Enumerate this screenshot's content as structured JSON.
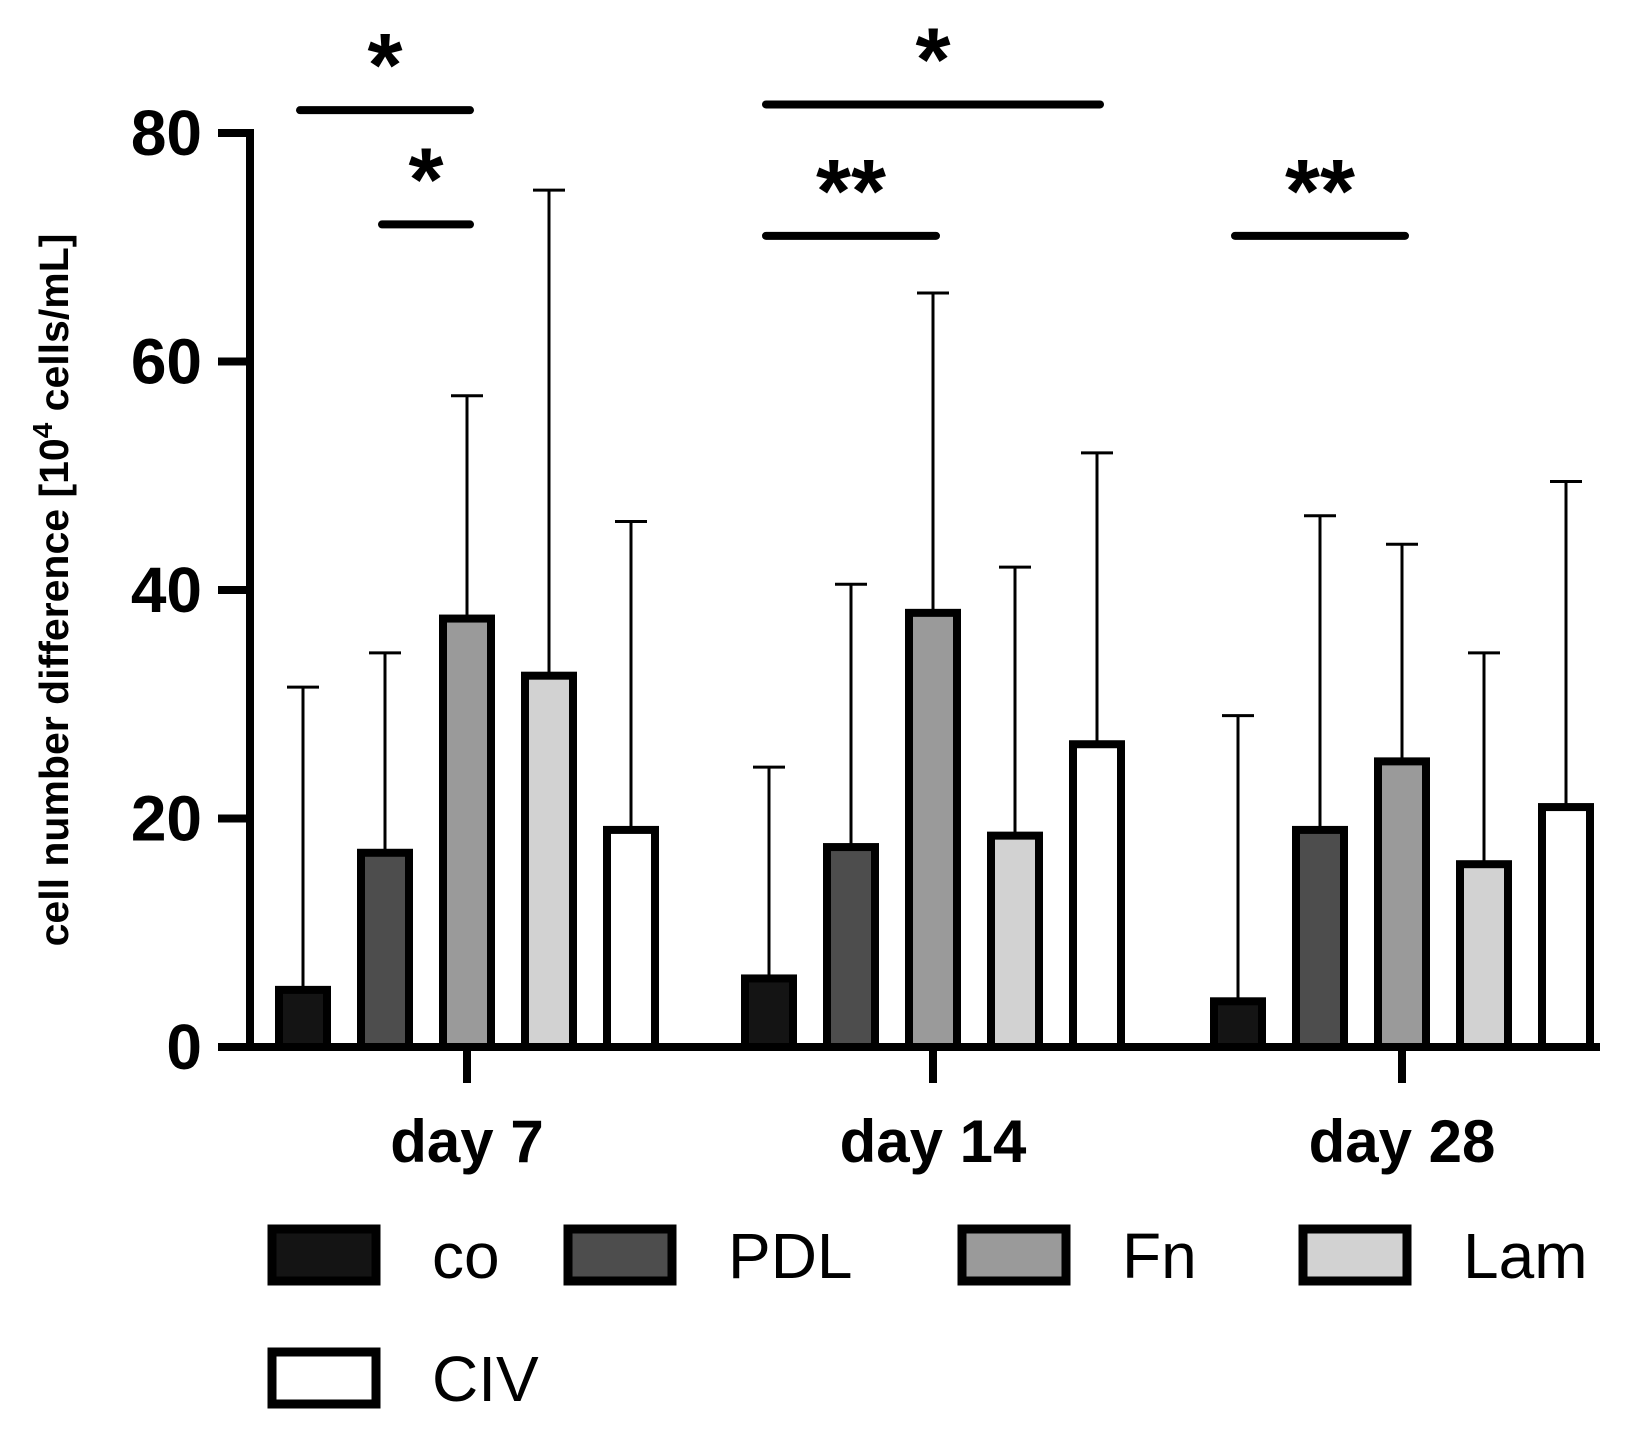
{
  "chart_data": {
    "type": "bar",
    "title": "",
    "xlabel": "",
    "ylabel": "cell number difference [10",
    "ylabel_sup": "4",
    "ylabel_suffix": " cells/mL]",
    "ylim": [
      0,
      80
    ],
    "yticks": [
      "0",
      "20",
      "40",
      "60",
      "80"
    ],
    "categories": [
      "day 7",
      "day 14",
      "day 28"
    ],
    "series": [
      {
        "name": "co",
        "color": "#141414",
        "values": [
          5,
          6,
          4
        ],
        "error": [
          26.5,
          18.5,
          25
        ]
      },
      {
        "name": "PDL",
        "color": "#4d4d4d",
        "values": [
          17,
          17.5,
          19
        ],
        "error": [
          17.5,
          23,
          27.5
        ]
      },
      {
        "name": "Fn",
        "color": "#9a9a9a",
        "values": [
          37.5,
          38,
          25
        ],
        "error": [
          19.5,
          28,
          19
        ]
      },
      {
        "name": "Lam",
        "color": "#d2d2d2",
        "values": [
          32.5,
          18.5,
          16
        ],
        "error": [
          42.5,
          23.5,
          18.5
        ]
      },
      {
        "name": "CIV",
        "color": "#ffffff",
        "values": [
          19,
          26.5,
          21
        ],
        "error": [
          27,
          25.5,
          28.5
        ]
      }
    ],
    "significance": [
      {
        "label": "*",
        "group": 0,
        "from": 0,
        "to": 2,
        "y": 82
      },
      {
        "label": "*",
        "group": 0,
        "from": 1,
        "to": 2,
        "y": 72
      },
      {
        "label": "*",
        "group": 1,
        "from": 0,
        "to": 4,
        "y": 82.5
      },
      {
        "label": "**",
        "group": 1,
        "from": 0,
        "to": 2,
        "y": 71
      },
      {
        "label": "**",
        "group": 2,
        "from": 0,
        "to": 2,
        "y": 71
      }
    ],
    "legend_position": "bottom"
  }
}
